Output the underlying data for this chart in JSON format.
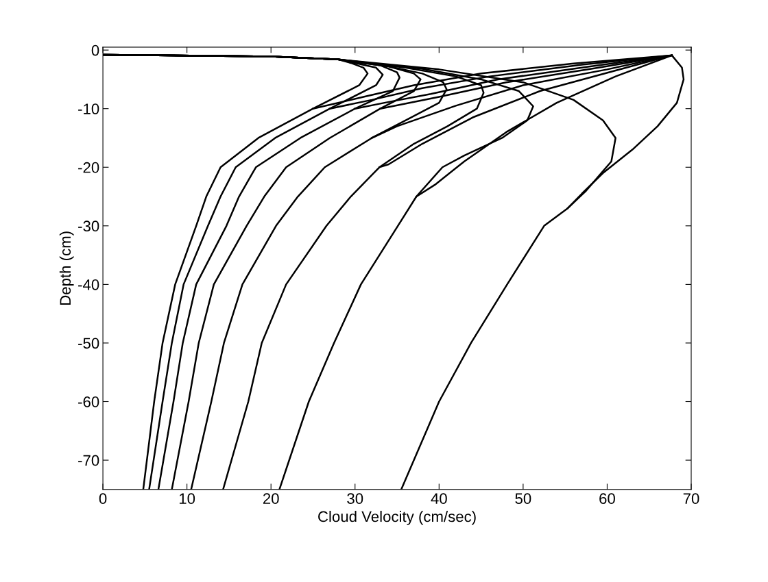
{
  "chart_data": {
    "type": "line",
    "xlabel": "Cloud Velocity (cm/sec)",
    "ylabel": "Depth (cm)",
    "xlim": [
      0,
      70
    ],
    "xticks": [
      0,
      10,
      20,
      30,
      40,
      50,
      60,
      70
    ],
    "ylim": [
      -75,
      0.5
    ],
    "yticks": [
      0,
      -10,
      -20,
      -30,
      -40,
      -50,
      -60,
      -70
    ],
    "marker": "none",
    "line_style": "solid",
    "series": [
      {
        "color": "#000000",
        "x": [
          0,
          20,
          28,
          29.5,
          31,
          31.5,
          30.5,
          25,
          18.5,
          14.0,
          12.3,
          11.1,
          8.6,
          7.1,
          6.1,
          4.8
        ],
        "values": [
          -0.8,
          -1.1,
          -1.6,
          -2.2,
          -3,
          -4,
          -6,
          -10,
          -15,
          -20,
          -25,
          -30,
          -40,
          -50,
          -60,
          -75
        ]
      },
      {
        "color": "#000000",
        "x": [
          0,
          20,
          28,
          30,
          32.5,
          33.3,
          32.5,
          27,
          20.5,
          15.8,
          14,
          12.5,
          9.6,
          8.2,
          7.1,
          5.5
        ],
        "values": [
          -0.8,
          -1.1,
          -1.6,
          -2.2,
          -3,
          -4.2,
          -6,
          -10,
          -15,
          -20,
          -25,
          -30,
          -40,
          -50,
          -60,
          -75
        ]
      },
      {
        "color": "#000000",
        "x": [
          0,
          20,
          28,
          33,
          35,
          35.3,
          34.5,
          30,
          23.5,
          18.2,
          16.2,
          14.7,
          11.1,
          9.5,
          8.4,
          6.6
        ],
        "values": [
          -0.8,
          -1.1,
          -1.6,
          -2.6,
          -3.8,
          -4.7,
          -7,
          -10,
          -15,
          -20,
          -25,
          -30,
          -40,
          -50,
          -60,
          -75
        ]
      },
      {
        "color": "#000000",
        "x": [
          0,
          20,
          28,
          34,
          37,
          37.8,
          37,
          33,
          27,
          21.8,
          19.2,
          17.1,
          13.2,
          11.4,
          10.2,
          8.2
        ],
        "values": [
          -0.8,
          -1.1,
          -1.6,
          -2.8,
          -4,
          -5,
          -7,
          -10,
          -15,
          -20,
          -25,
          -30,
          -40,
          -50,
          -60,
          -75
        ]
      },
      {
        "color": "#000000",
        "x": [
          0,
          20,
          28,
          34,
          38,
          40.5,
          40.9,
          40,
          36,
          32,
          26.4,
          23.2,
          20.6,
          16.6,
          14.4,
          12.9,
          10.5
        ],
        "values": [
          -0.8,
          -1.1,
          -1.6,
          -2.8,
          -4,
          -5.5,
          -6.7,
          -9,
          -12,
          -15,
          -20,
          -25,
          -30,
          -40,
          -50,
          -60,
          -75
        ]
      },
      {
        "color": "#000000",
        "x": [
          0,
          20,
          28,
          36,
          42,
          45,
          45.3,
          44.5,
          41,
          37,
          32.9,
          29.5,
          26.6,
          21.8,
          18.9,
          17.3,
          14.3
        ],
        "values": [
          -0.8,
          -1.1,
          -1.6,
          -3,
          -4.5,
          -6,
          -7.3,
          -10,
          -13,
          -16,
          -20,
          -25,
          -30,
          -40,
          -50,
          -60,
          -75
        ]
      },
      {
        "color": "#000000",
        "x": [
          0,
          20,
          28,
          38,
          45,
          49.5,
          51.2,
          50.5,
          47.5,
          43,
          40.4,
          37.3,
          35.1,
          30.7,
          27.5,
          24.5,
          21
        ],
        "values": [
          -0.8,
          -1.1,
          -1.6,
          -3.2,
          -5,
          -7,
          -9.6,
          -12,
          -15,
          -18,
          -20,
          -25,
          -30,
          -40,
          -50,
          -60,
          -75
        ]
      },
      {
        "color": "#000000",
        "x": [
          0,
          20,
          28,
          40,
          50,
          56,
          59.5,
          61,
          60.5,
          57.5,
          55.3,
          52.5,
          48.1,
          43.8,
          40,
          35.5
        ],
        "values": [
          -0.8,
          -1.1,
          -1.6,
          -3.3,
          -5.5,
          -8.5,
          -12,
          -15,
          -19,
          -24,
          -27,
          -30,
          -40,
          -50,
          -60,
          -75
        ]
      },
      {
        "color": "#000000",
        "x": [
          67.7,
          56,
          45,
          37,
          31,
          25
        ],
        "values": [
          -0.9,
          -2.3,
          -4,
          -6,
          -8,
          -10
        ]
      },
      {
        "color": "#000000",
        "x": [
          67.7,
          57,
          46,
          38,
          32,
          27
        ],
        "values": [
          -0.9,
          -2.5,
          -4.5,
          -6.5,
          -8.5,
          -10
        ]
      },
      {
        "color": "#000000",
        "x": [
          67.7,
          58,
          47,
          39,
          33.5,
          30
        ],
        "values": [
          -0.9,
          -2.8,
          -5,
          -7.5,
          -9,
          -10
        ]
      },
      {
        "color": "#000000",
        "x": [
          67.7,
          59,
          48,
          40,
          33
        ],
        "values": [
          -0.9,
          -3,
          -5.5,
          -8,
          -10
        ]
      },
      {
        "color": "#000000",
        "x": [
          67.7,
          60,
          50,
          42,
          35,
          32
        ],
        "values": [
          -0.9,
          -3.3,
          -6,
          -9.5,
          -13,
          -15
        ]
      },
      {
        "color": "#000000",
        "x": [
          67.7,
          61,
          52,
          44,
          38,
          34,
          32.9
        ],
        "values": [
          -0.9,
          -3.5,
          -7,
          -11.5,
          -16,
          -19.5,
          -20
        ]
      },
      {
        "color": "#000000",
        "x": [
          67.7,
          61,
          54,
          48,
          43,
          39.5,
          37.3
        ],
        "values": [
          -0.9,
          -4.5,
          -9,
          -14,
          -19,
          -23,
          -25
        ]
      },
      {
        "color": "#000000",
        "x": [
          67.7,
          68.9,
          69.1,
          68.3,
          66,
          63,
          59.5,
          57,
          55.3
        ],
        "values": [
          -0.9,
          -3,
          -5,
          -9,
          -13,
          -17,
          -21,
          -24.5,
          -27
        ]
      }
    ]
  }
}
